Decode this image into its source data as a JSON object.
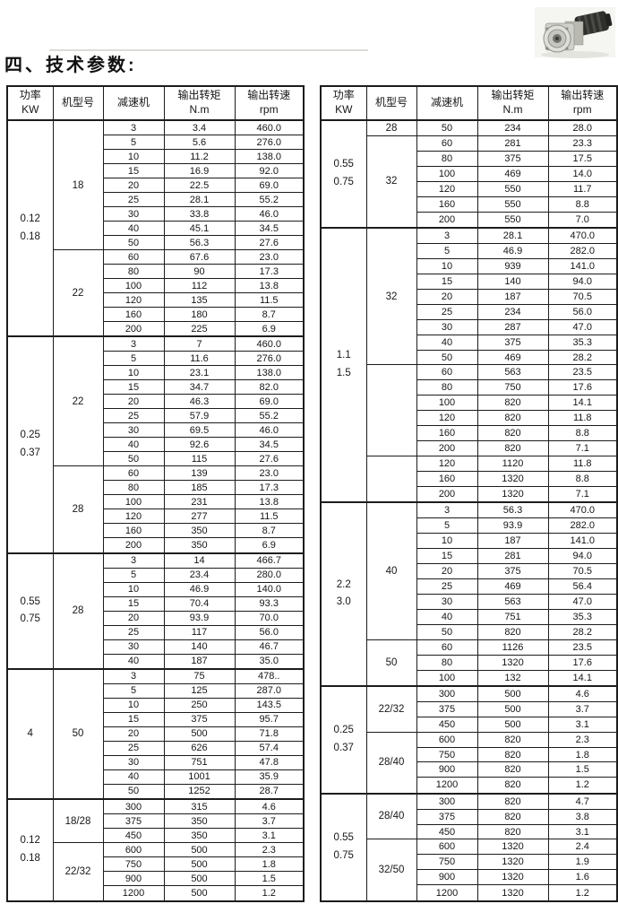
{
  "title": "四、技术参数:",
  "photo_icon": "gearmotor-photo",
  "colors": {
    "text": "#1c1c1c",
    "border": "#1c1c1c",
    "background": "#ffffff"
  },
  "tables": [
    {
      "name": "left",
      "columns": [
        "功率\nKW",
        "机型号",
        "减速机",
        "输出转矩\nN.m",
        "输出转速\nrpm"
      ],
      "sections": [
        {
          "power": "0.12\n0.18",
          "groups": [
            {
              "model": "18",
              "rows": [
                [
                  "3",
                  "3.4",
                  "460.0"
                ],
                [
                  "5",
                  "5.6",
                  "276.0"
                ],
                [
                  "10",
                  "11.2",
                  "138.0"
                ],
                [
                  "15",
                  "16.9",
                  "92.0"
                ],
                [
                  "20",
                  "22.5",
                  "69.0"
                ],
                [
                  "25",
                  "28.1",
                  "55.2"
                ],
                [
                  "30",
                  "33.8",
                  "46.0"
                ],
                [
                  "40",
                  "45.1",
                  "34.5"
                ],
                [
                  "50",
                  "56.3",
                  "27.6"
                ]
              ]
            },
            {
              "model": "22",
              "rows": [
                [
                  "60",
                  "67.6",
                  "23.0"
                ],
                [
                  "80",
                  "90",
                  "17.3"
                ],
                [
                  "100",
                  "112",
                  "13.8"
                ],
                [
                  "120",
                  "135",
                  "11.5"
                ],
                [
                  "160",
                  "180",
                  "8.7"
                ],
                [
                  "200",
                  "225",
                  "6.9"
                ]
              ]
            }
          ]
        },
        {
          "power": "0.25\n0.37",
          "groups": [
            {
              "model": "22",
              "rows": [
                [
                  "3",
                  "7",
                  "460.0"
                ],
                [
                  "5",
                  "11.6",
                  "276.0"
                ],
                [
                  "10",
                  "23.1",
                  "138.0"
                ],
                [
                  "15",
                  "34.7",
                  "82.0"
                ],
                [
                  "20",
                  "46.3",
                  "69.0"
                ],
                [
                  "25",
                  "57.9",
                  "55.2"
                ],
                [
                  "30",
                  "69.5",
                  "46.0"
                ],
                [
                  "40",
                  "92.6",
                  "34.5"
                ],
                [
                  "50",
                  "115",
                  "27.6"
                ]
              ]
            },
            {
              "model": "28",
              "rows": [
                [
                  "60",
                  "139",
                  "23.0"
                ],
                [
                  "80",
                  "185",
                  "17.3"
                ],
                [
                  "100",
                  "231",
                  "13.8"
                ],
                [
                  "120",
                  "277",
                  "11.5"
                ],
                [
                  "160",
                  "350",
                  "8.7"
                ],
                [
                  "200",
                  "350",
                  "6.9"
                ]
              ]
            }
          ]
        },
        {
          "power": "0.55\n0.75",
          "groups": [
            {
              "model": "28",
              "rows": [
                [
                  "3",
                  "14",
                  "466.7"
                ],
                [
                  "5",
                  "23.4",
                  "280.0"
                ],
                [
                  "10",
                  "46.9",
                  "140.0"
                ],
                [
                  "15",
                  "70.4",
                  "93.3"
                ],
                [
                  "20",
                  "93.9",
                  "70.0"
                ],
                [
                  "25",
                  "117",
                  "56.0"
                ],
                [
                  "30",
                  "140",
                  "46.7"
                ],
                [
                  "40",
                  "187",
                  "35.0"
                ]
              ]
            }
          ]
        },
        {
          "power": "4",
          "groups": [
            {
              "model": "50",
              "rows": [
                [
                  "3",
                  "75",
                  "478.."
                ],
                [
                  "5",
                  "125",
                  "287.0"
                ],
                [
                  "10",
                  "250",
                  "143.5"
                ],
                [
                  "15",
                  "375",
                  "95.7"
                ],
                [
                  "20",
                  "500",
                  "71.8"
                ],
                [
                  "25",
                  "626",
                  "57.4"
                ],
                [
                  "30",
                  "751",
                  "47.8"
                ],
                [
                  "40",
                  "1001",
                  "35.9"
                ],
                [
                  "50",
                  "1252",
                  "28.7"
                ]
              ]
            }
          ]
        },
        {
          "power": "0.12\n0.18",
          "groups": [
            {
              "model": "18/28",
              "rows": [
                [
                  "300",
                  "315",
                  "4.6"
                ],
                [
                  "375",
                  "350",
                  "3.7"
                ],
                [
                  "450",
                  "350",
                  "3.1"
                ]
              ]
            },
            {
              "model": "22/32",
              "rows": [
                [
                  "600",
                  "500",
                  "2.3"
                ],
                [
                  "750",
                  "500",
                  "1.8"
                ],
                [
                  "900",
                  "500",
                  "1.5"
                ],
                [
                  "1200",
                  "500",
                  "1.2"
                ]
              ]
            }
          ]
        }
      ]
    },
    {
      "name": "right",
      "columns": [
        "功率\nKW",
        "机型号",
        "减速机",
        "输出转矩\nN.m",
        "输出转速\nrpm"
      ],
      "sections": [
        {
          "power": "0.55\n0.75",
          "groups": [
            {
              "model": "28",
              "rows": [
                [
                  "50",
                  "234",
                  "28.0"
                ]
              ]
            },
            {
              "model": "32",
              "rows": [
                [
                  "60",
                  "281",
                  "23.3"
                ],
                [
                  "80",
                  "375",
                  "17.5"
                ],
                [
                  "100",
                  "469",
                  "14.0"
                ],
                [
                  "120",
                  "550",
                  "11.7"
                ],
                [
                  "160",
                  "550",
                  "8.8"
                ],
                [
                  "200",
                  "550",
                  "7.0"
                ]
              ]
            }
          ]
        },
        {
          "power": "1.1\n1.5",
          "groups": [
            {
              "model": "32",
              "rows": [
                [
                  "3",
                  "28.1",
                  "470.0"
                ],
                [
                  "5",
                  "46.9",
                  "282.0"
                ],
                [
                  "10",
                  "939",
                  "141.0"
                ],
                [
                  "15",
                  "140",
                  "94.0"
                ],
                [
                  "20",
                  "187",
                  "70.5"
                ],
                [
                  "25",
                  "234",
                  "56.0"
                ],
                [
                  "30",
                  "287",
                  "47.0"
                ],
                [
                  "40",
                  "375",
                  "35.3"
                ],
                [
                  "50",
                  "469",
                  "28.2"
                ]
              ]
            },
            {
              "model": "",
              "rows": [
                [
                  "60",
                  "563",
                  "23.5"
                ],
                [
                  "80",
                  "750",
                  "17.6"
                ],
                [
                  "100",
                  "820",
                  "14.1"
                ],
                [
                  "120",
                  "820",
                  "11.8"
                ],
                [
                  "160",
                  "820",
                  "8.8"
                ],
                [
                  "200",
                  "820",
                  "7.1"
                ]
              ]
            },
            {
              "model": "",
              "rows": [
                [
                  "120",
                  "1120",
                  "11.8"
                ],
                [
                  "160",
                  "1320",
                  "8.8"
                ],
                [
                  "200",
                  "1320",
                  "7.1"
                ]
              ]
            }
          ]
        },
        {
          "power": "2.2\n3.0",
          "groups": [
            {
              "model": "40",
              "rows": [
                [
                  "3",
                  "56.3",
                  "470.0"
                ],
                [
                  "5",
                  "93.9",
                  "282.0"
                ],
                [
                  "10",
                  "187",
                  "141.0"
                ],
                [
                  "15",
                  "281",
                  "94.0"
                ],
                [
                  "20",
                  "375",
                  "70.5"
                ],
                [
                  "25",
                  "469",
                  "56.4"
                ],
                [
                  "30",
                  "563",
                  "47.0"
                ],
                [
                  "40",
                  "751",
                  "35.3"
                ],
                [
                  "50",
                  "820",
                  "28.2"
                ]
              ]
            },
            {
              "model": "50",
              "rows": [
                [
                  "60",
                  "1126",
                  "23.5"
                ],
                [
                  "80",
                  "1320",
                  "17.6"
                ],
                [
                  "100",
                  "132",
                  "14.1"
                ]
              ]
            }
          ]
        },
        {
          "power": "0.25\n0.37",
          "groups": [
            {
              "model": "22/32",
              "rows": [
                [
                  "300",
                  "500",
                  "4.6"
                ],
                [
                  "375",
                  "500",
                  "3.7"
                ],
                [
                  "450",
                  "500",
                  "3.1"
                ]
              ]
            },
            {
              "model": "28/40",
              "rows": [
                [
                  "600",
                  "820",
                  "2.3"
                ],
                [
                  "750",
                  "820",
                  "1.8"
                ],
                [
                  "900",
                  "820",
                  "1.5"
                ],
                [
                  "1200",
                  "820",
                  "1.2"
                ]
              ]
            }
          ]
        },
        {
          "power": "0.55\n0.75",
          "groups": [
            {
              "model": "28/40",
              "rows": [
                [
                  "300",
                  "820",
                  "4.7"
                ],
                [
                  "375",
                  "820",
                  "3.8"
                ],
                [
                  "450",
                  "820",
                  "3.1"
                ]
              ]
            },
            {
              "model": "32/50",
              "rows": [
                [
                  "600",
                  "1320",
                  "2.4"
                ],
                [
                  "750",
                  "1320",
                  "1.9"
                ],
                [
                  "900",
                  "1320",
                  "1.6"
                ],
                [
                  "1200",
                  "1320",
                  "1.2"
                ]
              ]
            }
          ]
        }
      ]
    }
  ]
}
